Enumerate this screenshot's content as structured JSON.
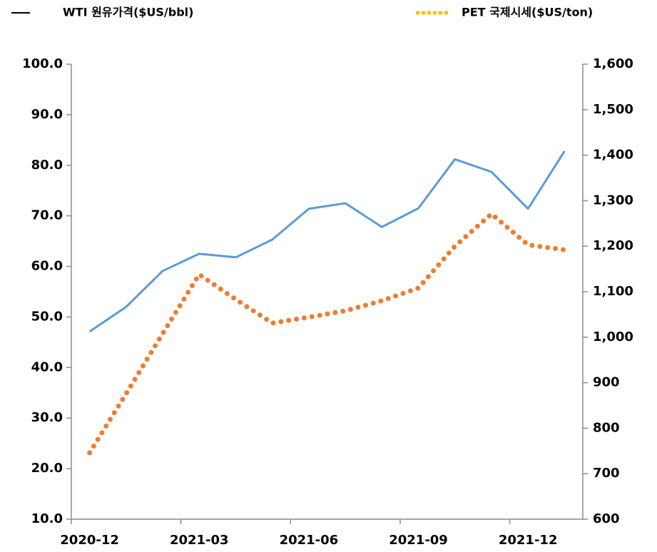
{
  "chart_data": {
    "type": "line",
    "categories": [
      "2020-12",
      null,
      null,
      "2021-03",
      null,
      null,
      "2021-06",
      null,
      null,
      "2021-09",
      null,
      null,
      "2021-12",
      null
    ],
    "series": [
      {
        "name": "WTI 원유가격($US/bbl)",
        "color": "#5b9bd5",
        "legend_color": "#000000",
        "style": "solid",
        "values": [
          47.1,
          52.0,
          59.1,
          62.5,
          61.8,
          65.3,
          71.4,
          72.5,
          67.8,
          71.5,
          81.2,
          78.7,
          71.4,
          82.8
        ]
      },
      {
        "name": "PET 국제시세($US/ton)",
        "color": "#ed7d31",
        "legend_color": "#ffc000",
        "style": "dotted",
        "axis": "y2",
        "values": [
          746,
          876,
          1008,
          1138,
          1083,
          1031,
          1044,
          1058,
          1080,
          1108,
          1200,
          1271,
          1203,
          1192
        ]
      }
    ],
    "ylim": [
      10,
      100
    ],
    "yticks": [
      {
        "value": 10,
        "label": "10.0"
      },
      {
        "value": 20,
        "label": "20.0"
      },
      {
        "value": 30,
        "label": "30.0"
      },
      {
        "value": 40,
        "label": "40.0"
      },
      {
        "value": 50,
        "label": "50.0"
      },
      {
        "value": 60,
        "label": "60.0"
      },
      {
        "value": 70,
        "label": "70.0"
      },
      {
        "value": 80,
        "label": "80.0"
      },
      {
        "value": 90,
        "label": "90.0"
      },
      {
        "value": 100,
        "label": "100.0"
      }
    ],
    "y2lim": [
      600,
      1600
    ],
    "y2ticks": [
      600,
      700,
      800,
      900,
      {
        "value": 1000,
        "label": "1,000"
      },
      {
        "value": 1100,
        "label": "1,100"
      },
      {
        "value": 1200,
        "label": "1,200"
      },
      {
        "value": 1300,
        "label": "1,300"
      },
      {
        "value": 1400,
        "label": "1,400"
      },
      {
        "value": 1500,
        "label": "1,500"
      },
      {
        "value": 1600,
        "label": "1,600"
      }
    ],
    "grid": false,
    "legend": "top"
  }
}
